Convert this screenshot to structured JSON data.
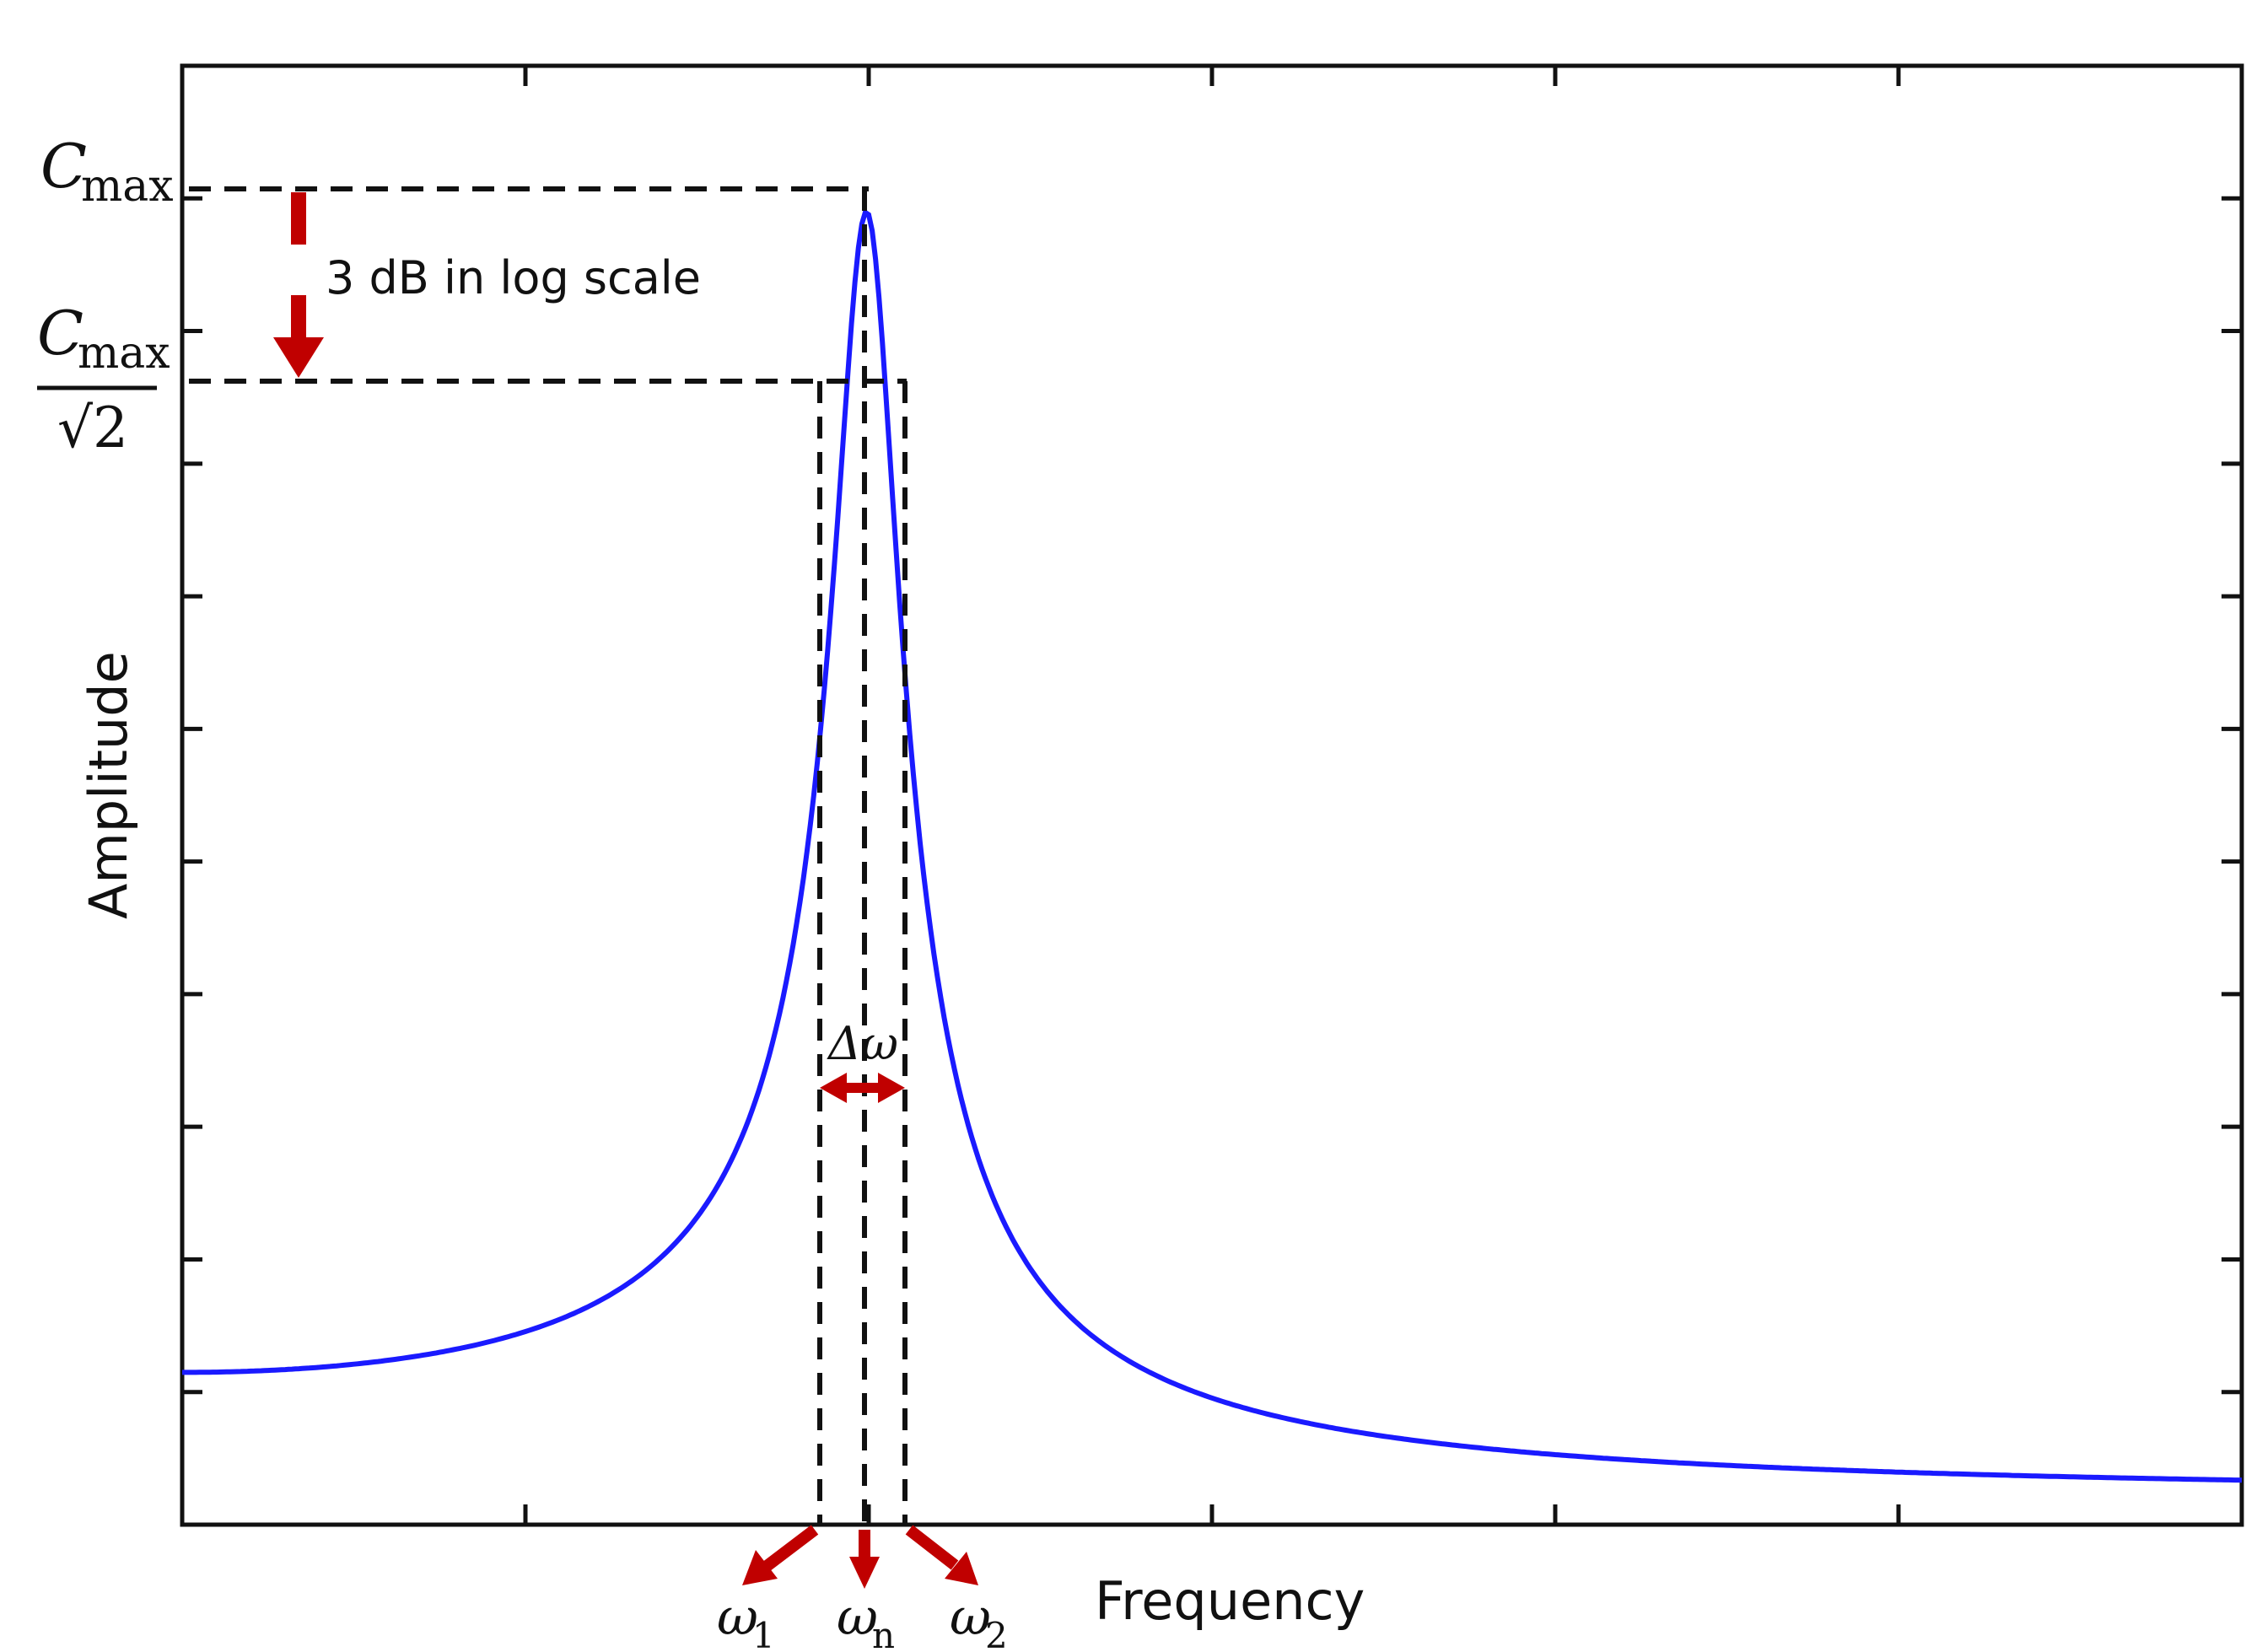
{
  "chart_data": {
    "type": "line",
    "xlabel": "Frequency",
    "ylabel": "Amplitude",
    "grid": false,
    "legend": "none",
    "x_ticks": 6,
    "y_ticks": 11,
    "series": [
      {
        "color": "#1a1aff",
        "model": "resonance",
        "natural_frequency": 0.333,
        "damping_ratio": 0.048,
        "x_range": [
          0,
          1
        ],
        "amplitude_range": [
          0.02,
          0.9
        ]
      }
    ],
    "annotations": {
      "cmax_label": "C",
      "cmax_sub": "max",
      "half_power_num": "C",
      "half_power_num_sub": "max",
      "half_power_den": "√2",
      "db_text": "3 dB in log scale",
      "bandwidth_label": "Δω",
      "omega_symbol": "ω",
      "omega1_sub": "1",
      "omegan_sub": "n",
      "omega2_sub": "2"
    },
    "colors": {
      "curve": "#1a1aff",
      "arrows": "#c00000",
      "guides": "#111111"
    }
  }
}
